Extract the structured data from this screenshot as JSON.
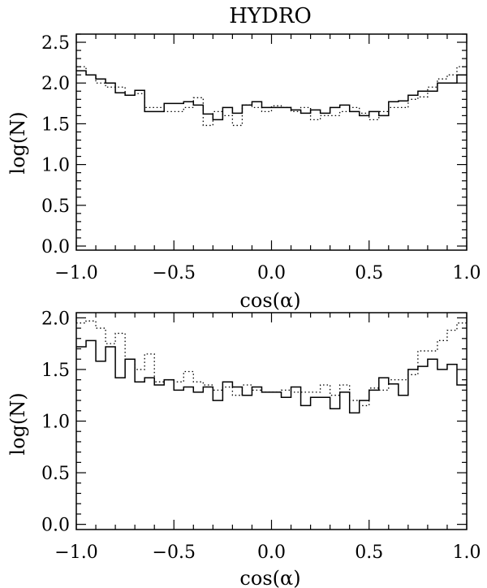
{
  "chart_data": [
    {
      "type": "line",
      "title": "HYDRO",
      "xlabel": "cos(α)",
      "ylabel": "log(N)",
      "xlim": [
        -1.0,
        1.0
      ],
      "ylim": [
        -0.05,
        2.6
      ],
      "xticks": [
        "−1.0",
        "−0.5",
        "0.0",
        "0.5",
        "1.0"
      ],
      "yticks": [
        "0.0",
        "0.5",
        "1.0",
        "1.5",
        "2.0",
        "2.5"
      ],
      "x": [
        -1.0,
        -0.95,
        -0.9,
        -0.85,
        -0.8,
        -0.75,
        -0.7,
        -0.65,
        -0.6,
        -0.55,
        -0.5,
        -0.45,
        -0.4,
        -0.35,
        -0.3,
        -0.25,
        -0.2,
        -0.15,
        -0.1,
        -0.05,
        0.0,
        0.05,
        0.1,
        0.15,
        0.2,
        0.25,
        0.3,
        0.35,
        0.4,
        0.45,
        0.5,
        0.55,
        0.6,
        0.65,
        0.7,
        0.75,
        0.8,
        0.85,
        0.9,
        0.95
      ],
      "series": [
        {
          "style": "solid",
          "values": [
            2.15,
            2.1,
            2.05,
            2.0,
            1.88,
            1.85,
            1.91,
            1.65,
            1.65,
            1.75,
            1.75,
            1.77,
            1.73,
            1.62,
            1.55,
            1.7,
            1.63,
            1.73,
            1.77,
            1.7,
            1.7,
            1.7,
            1.67,
            1.63,
            1.67,
            1.63,
            1.7,
            1.73,
            1.65,
            1.6,
            1.65,
            1.6,
            1.77,
            1.78,
            1.85,
            1.9,
            1.9,
            2.0,
            2.0,
            2.1
          ]
        },
        {
          "style": "dotted",
          "values": [
            2.2,
            2.1,
            2.0,
            1.95,
            1.95,
            1.85,
            1.87,
            1.7,
            1.7,
            1.65,
            1.65,
            1.7,
            1.82,
            1.48,
            1.65,
            1.6,
            1.48,
            1.73,
            1.7,
            1.65,
            1.72,
            1.7,
            1.65,
            1.7,
            1.55,
            1.6,
            1.6,
            1.65,
            1.7,
            1.63,
            1.55,
            1.65,
            1.7,
            1.7,
            1.8,
            1.83,
            1.95,
            2.05,
            2.1,
            2.2
          ]
        }
      ]
    },
    {
      "type": "line",
      "xlabel": "cos(α)",
      "ylabel": "log(N)",
      "xlim": [
        -1.0,
        1.0
      ],
      "ylim": [
        -0.05,
        2.05
      ],
      "xticks": [
        "−1.0",
        "−0.5",
        "0.0",
        "0.5",
        "1.0"
      ],
      "yticks": [
        "0.0",
        "0.5",
        "1.0",
        "1.5",
        "2.0"
      ],
      "x": [
        -1.0,
        -0.95,
        -0.9,
        -0.85,
        -0.8,
        -0.75,
        -0.7,
        -0.65,
        -0.6,
        -0.55,
        -0.5,
        -0.45,
        -0.4,
        -0.35,
        -0.3,
        -0.25,
        -0.2,
        -0.15,
        -0.1,
        -0.05,
        0.0,
        0.05,
        0.1,
        0.15,
        0.2,
        0.25,
        0.3,
        0.35,
        0.4,
        0.45,
        0.5,
        0.55,
        0.6,
        0.65,
        0.7,
        0.75,
        0.8,
        0.85,
        0.9,
        0.95
      ],
      "series": [
        {
          "style": "solid",
          "values": [
            1.72,
            1.78,
            1.58,
            1.72,
            1.42,
            1.6,
            1.38,
            1.42,
            1.35,
            1.4,
            1.3,
            1.33,
            1.28,
            1.33,
            1.2,
            1.38,
            1.33,
            1.25,
            1.33,
            1.28,
            1.28,
            1.23,
            1.33,
            1.15,
            1.23,
            1.23,
            1.12,
            1.28,
            1.08,
            1.2,
            1.3,
            1.42,
            1.36,
            1.25,
            1.5,
            1.53,
            1.6,
            1.5,
            1.55,
            1.35
          ]
        },
        {
          "style": "dotted",
          "values": [
            1.95,
            1.97,
            1.9,
            1.75,
            1.85,
            1.6,
            1.5,
            1.65,
            1.38,
            1.4,
            1.38,
            1.48,
            1.38,
            1.35,
            1.3,
            1.33,
            1.25,
            1.35,
            1.3,
            1.28,
            1.28,
            1.3,
            1.28,
            1.28,
            1.28,
            1.35,
            1.25,
            1.35,
            1.2,
            1.15,
            1.32,
            1.3,
            1.4,
            1.4,
            1.45,
            1.68,
            1.68,
            1.78,
            1.88,
            1.95
          ]
        }
      ]
    }
  ]
}
